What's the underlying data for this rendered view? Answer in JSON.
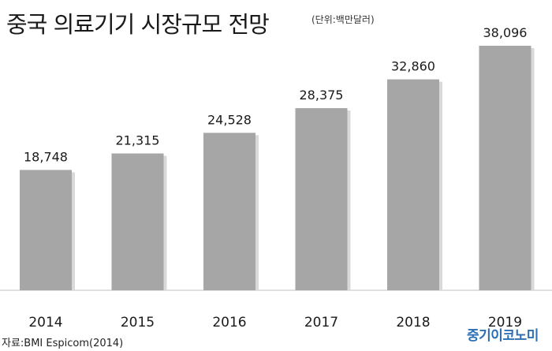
{
  "header": {
    "title": "중국 의료기기 시장규모 전망",
    "unit": "(단위:백만달러)"
  },
  "footer": {
    "source": "자료:BMI Espicom(2014)",
    "logo": "중기이코노미"
  },
  "colors": {
    "bar": "#a6a6a6",
    "bar_shadow": "#d9d9d9",
    "gridline": "#bfbfbf",
    "logo": "#2d6fb5"
  },
  "chart_data": {
    "type": "bar",
    "categories": [
      "2014",
      "2015",
      "2016",
      "2017",
      "2018",
      "2019"
    ],
    "values": [
      18748,
      21315,
      24528,
      28375,
      32860,
      38096
    ],
    "value_labels": [
      "18,748",
      "21,315",
      "24,528",
      "28,375",
      "32,860",
      "38,096"
    ],
    "title": "중국 의료기기 시장규모 전망",
    "xlabel": "",
    "ylabel": "",
    "ylim": [
      0,
      38096
    ],
    "grid": false,
    "legend": "none"
  }
}
